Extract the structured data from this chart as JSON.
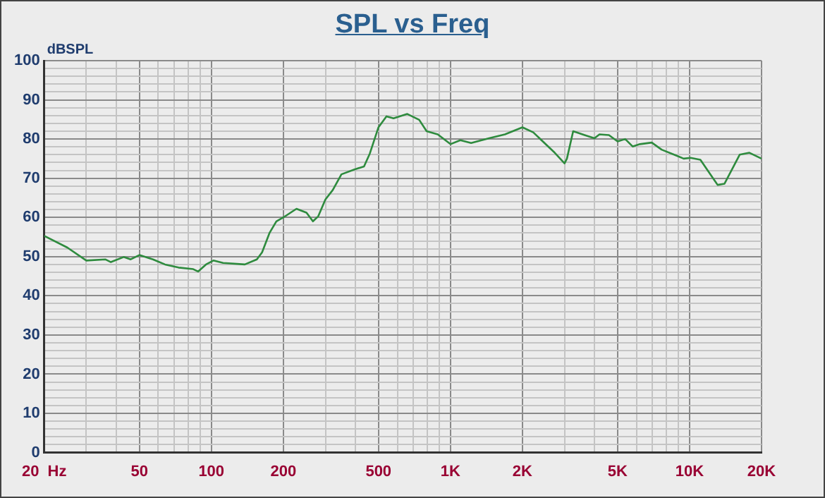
{
  "chart_data": {
    "type": "line",
    "title": "SPL vs Freq",
    "ylabel": "dBSPL",
    "log": "x",
    "grid": true,
    "legend": false,
    "marker": "none",
    "line_style": "solid",
    "xlim": [
      20,
      20000
    ],
    "ylim": [
      0,
      100
    ],
    "xticks": [
      {
        "value": 20,
        "label": "20  Hz"
      },
      {
        "value": 30,
        "label": null
      },
      {
        "value": 40,
        "label": null
      },
      50,
      {
        "value": 60,
        "label": null
      },
      {
        "value": 70,
        "label": null
      },
      {
        "value": 80,
        "label": null
      },
      {
        "value": 90,
        "label": null
      },
      100,
      200,
      {
        "value": 300,
        "label": null
      },
      {
        "value": 400,
        "label": null
      },
      500,
      {
        "value": 600,
        "label": null
      },
      {
        "value": 700,
        "label": null
      },
      {
        "value": 800,
        "label": null
      },
      {
        "value": 900,
        "label": null
      },
      {
        "value": 1000,
        "label": "1K"
      },
      {
        "value": 2000,
        "label": "2K"
      },
      {
        "value": 3000,
        "label": null
      },
      {
        "value": 4000,
        "label": null
      },
      {
        "value": 5000,
        "label": "5K"
      },
      {
        "value": 6000,
        "label": null
      },
      {
        "value": 7000,
        "label": null
      },
      {
        "value": 8000,
        "label": null
      },
      {
        "value": 9000,
        "label": null
      },
      {
        "value": 10000,
        "label": "10K"
      },
      {
        "value": 20000,
        "label": "20K"
      }
    ],
    "yticks": [
      0,
      {
        "value": 2,
        "label": null
      },
      {
        "value": 4,
        "label": null
      },
      {
        "value": 6,
        "label": null
      },
      {
        "value": 8,
        "label": null
      },
      10,
      {
        "value": 12,
        "label": null
      },
      {
        "value": 14,
        "label": null
      },
      {
        "value": 16,
        "label": null
      },
      {
        "value": 18,
        "label": null
      },
      20,
      {
        "value": 22,
        "label": null
      },
      {
        "value": 24,
        "label": null
      },
      {
        "value": 26,
        "label": null
      },
      {
        "value": 28,
        "label": null
      },
      30,
      {
        "value": 32,
        "label": null
      },
      {
        "value": 34,
        "label": null
      },
      {
        "value": 36,
        "label": null
      },
      {
        "value": 38,
        "label": null
      },
      40,
      {
        "value": 42,
        "label": null
      },
      {
        "value": 44,
        "label": null
      },
      {
        "value": 46,
        "label": null
      },
      {
        "value": 48,
        "label": null
      },
      50,
      {
        "value": 52,
        "label": null
      },
      {
        "value": 54,
        "label": null
      },
      {
        "value": 56,
        "label": null
      },
      {
        "value": 58,
        "label": null
      },
      60,
      {
        "value": 62,
        "label": null
      },
      {
        "value": 64,
        "label": null
      },
      {
        "value": 66,
        "label": null
      },
      {
        "value": 68,
        "label": null
      },
      70,
      {
        "value": 72,
        "label": null
      },
      {
        "value": 74,
        "label": null
      },
      {
        "value": 76,
        "label": null
      },
      {
        "value": 78,
        "label": null
      },
      80,
      {
        "value": 82,
        "label": null
      },
      {
        "value": 84,
        "label": null
      },
      {
        "value": 86,
        "label": null
      },
      {
        "value": 88,
        "label": null
      },
      90,
      {
        "value": 92,
        "label": null
      },
      {
        "value": 94,
        "label": null
      },
      {
        "value": 96,
        "label": null
      },
      {
        "value": 98,
        "label": null
      },
      100
    ],
    "series": [
      {
        "color": "#2e8b3e",
        "x": [
          20,
          25,
          30,
          36,
          38,
          43,
          46,
          50,
          57,
          64,
          73,
          84,
          88,
          95,
          102,
          112,
          138,
          155,
          163,
          175,
          187,
          200,
          227,
          250,
          266,
          280,
          300,
          322,
          350,
          395,
          435,
          460,
          500,
          540,
          578,
          660,
          740,
          795,
          885,
          1000,
          1100,
          1220,
          1450,
          1690,
          2000,
          2220,
          2730,
          3000,
          3070,
          3260,
          3640,
          4000,
          4200,
          4600,
          5000,
          5380,
          5780,
          6200,
          6950,
          7640,
          8800,
          9450,
          10100,
          11100,
          11900,
          13100,
          14000,
          16200,
          17800,
          20000
        ],
        "values": [
          55.3,
          52.3,
          49,
          49.3,
          48.6,
          49.9,
          49.3,
          50.4,
          49.3,
          48,
          47.2,
          46.8,
          46.2,
          48,
          49,
          48.4,
          48,
          49.3,
          51.1,
          56,
          59,
          60,
          62.2,
          61.2,
          59,
          60.3,
          64.6,
          67,
          71,
          72.2,
          73,
          76.3,
          83,
          85.8,
          85.3,
          86.4,
          84.9,
          82,
          81.2,
          78.7,
          79.7,
          79,
          80.2,
          81.2,
          83,
          81.7,
          76.5,
          73.8,
          75,
          82,
          81,
          80.2,
          81.2,
          81,
          79.4,
          80,
          78.1,
          78.7,
          79.1,
          77.3,
          75.8,
          75,
          75.2,
          74.7,
          72,
          68.3,
          68.6,
          76,
          76.5,
          75
        ]
      }
    ]
  }
}
